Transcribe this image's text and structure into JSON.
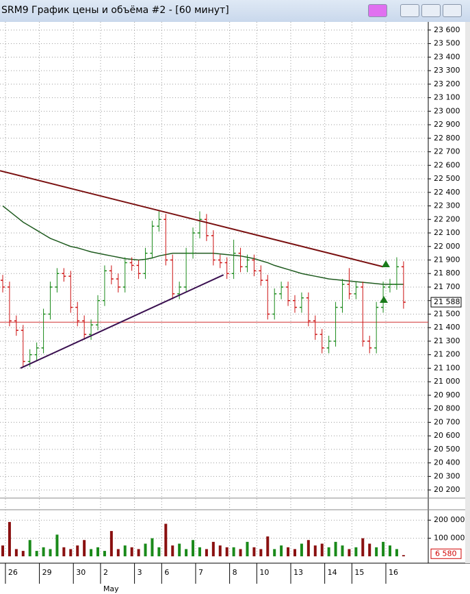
{
  "title": "SRM9 График цены и объёма #2 - [60 минут]",
  "chart_data": {
    "type": "candlestick",
    "open": [
      21750,
      21700,
      21450,
      21380,
      21150,
      21200,
      21250,
      21500,
      21700,
      21800,
      21780,
      21550,
      21450,
      21350,
      21420,
      21600,
      21820,
      21760,
      21700,
      21880,
      21860,
      21800,
      21950,
      22150,
      22200,
      21900,
      21650,
      21700,
      21950,
      22100,
      22200,
      22080,
      21900,
      21880,
      21800,
      21950,
      21850,
      21900,
      21820,
      21750,
      21500,
      21650,
      21700,
      21600,
      21550,
      21620,
      21450,
      21350,
      21250,
      21300,
      21550,
      21720,
      21650,
      21700,
      21300,
      21250,
      21550,
      21700,
      21720,
      21850
    ],
    "high": [
      21790,
      21740,
      21490,
      21420,
      21240,
      21290,
      21540,
      21740,
      21840,
      21840,
      21820,
      21590,
      21490,
      21460,
      21640,
      21860,
      21860,
      21800,
      21920,
      21920,
      21900,
      21990,
      22190,
      22260,
      22240,
      21940,
      21740,
      21990,
      22140,
      22260,
      22240,
      22120,
      21940,
      21920,
      22050,
      21990,
      21940,
      21940,
      21860,
      21790,
      21690,
      21740,
      21740,
      21640,
      21660,
      21660,
      21490,
      21390,
      21340,
      21590,
      21760,
      21840,
      21740,
      21740,
      21340,
      21590,
      21740,
      21760,
      21920,
      21890
    ],
    "low": [
      21660,
      21410,
      21340,
      21110,
      21110,
      21160,
      21210,
      21460,
      21660,
      21740,
      21510,
      21410,
      21310,
      21310,
      21380,
      21560,
      21720,
      21660,
      21660,
      21820,
      21760,
      21760,
      21910,
      22110,
      21860,
      21610,
      21610,
      21660,
      21910,
      22060,
      22040,
      21860,
      21840,
      21760,
      21760,
      21810,
      21810,
      21780,
      21710,
      21460,
      21460,
      21610,
      21560,
      21510,
      21510,
      21410,
      21310,
      21210,
      21210,
      21260,
      21510,
      21610,
      21610,
      21260,
      21210,
      21210,
      21510,
      21660,
      21680,
      21540
    ],
    "close": [
      21700,
      21450,
      21380,
      21150,
      21200,
      21250,
      21500,
      21700,
      21800,
      21780,
      21550,
      21450,
      21350,
      21420,
      21600,
      21820,
      21760,
      21700,
      21880,
      21860,
      21800,
      21950,
      22150,
      22200,
      21900,
      21650,
      21700,
      21950,
      22100,
      22200,
      22080,
      21900,
      21880,
      21800,
      21950,
      21850,
      21900,
      21820,
      21750,
      21500,
      21650,
      21700,
      21600,
      21550,
      21620,
      21450,
      21350,
      21250,
      21300,
      21550,
      21720,
      21650,
      21700,
      21300,
      21250,
      21550,
      21700,
      21720,
      21850,
      21588
    ],
    "moving_average": [
      22300,
      22260,
      22220,
      22180,
      22150,
      22120,
      22090,
      22060,
      22040,
      22020,
      22000,
      21990,
      21975,
      21960,
      21950,
      21940,
      21930,
      21920,
      21910,
      21905,
      21900,
      21905,
      21915,
      21930,
      21940,
      21950,
      21950,
      21950,
      21950,
      21950,
      21950,
      21950,
      21945,
      21940,
      21935,
      21930,
      21920,
      21910,
      21895,
      21880,
      21860,
      21845,
      21830,
      21815,
      21800,
      21790,
      21780,
      21770,
      21760,
      21755,
      21750,
      21745,
      21740,
      21735,
      21730,
      21725,
      21720,
      21720,
      21720,
      21720
    ],
    "volume": [
      60000,
      190000,
      40000,
      30000,
      90000,
      30000,
      50000,
      40000,
      120000,
      50000,
      40000,
      60000,
      90000,
      40000,
      50000,
      30000,
      140000,
      40000,
      60000,
      50000,
      40000,
      70000,
      100000,
      50000,
      180000,
      60000,
      70000,
      40000,
      90000,
      50000,
      40000,
      80000,
      60000,
      50000,
      50000,
      40000,
      80000,
      50000,
      40000,
      110000,
      40000,
      60000,
      50000,
      40000,
      70000,
      90000,
      60000,
      70000,
      50000,
      80000,
      60000,
      40000,
      50000,
      100000,
      70000,
      50000,
      80000,
      60000,
      40000,
      6580
    ],
    "up_color": "#1a8a1a",
    "down_color": "#cc1010",
    "ma_color": "#1e5a1e",
    "trendlines": [
      {
        "x": [
          -0.4,
          56
        ],
        "y": [
          22560,
          21850
        ],
        "color": "#7a1010"
      },
      {
        "x": [
          2.6,
          32.5
        ],
        "y": [
          21100,
          21790
        ],
        "color": "#3a1050"
      }
    ],
    "hline": {
      "value": 21440,
      "color": "#d03030"
    },
    "last_price": {
      "value": 21588,
      "label": "21 588"
    },
    "last_volume": {
      "value": 6580,
      "label": "6 580"
    },
    "ylim": [
      20150,
      23655
    ],
    "yticks": [
      {
        "value": 20200,
        "label": "20 200"
      },
      {
        "value": 20300,
        "label": "20 300"
      },
      {
        "value": 20400,
        "label": "20 400"
      },
      {
        "value": 20500,
        "label": "20 500"
      },
      {
        "value": 20600,
        "label": "20 600"
      },
      {
        "value": 20700,
        "label": "20 700"
      },
      {
        "value": 20800,
        "label": "20 800"
      },
      {
        "value": 20900,
        "label": "20 900"
      },
      {
        "value": 21000,
        "label": "21 000"
      },
      {
        "value": 21100,
        "label": "21 100"
      },
      {
        "value": 21200,
        "label": "21 200"
      },
      {
        "value": 21300,
        "label": "21 300"
      },
      {
        "value": 21400,
        "label": "21 400"
      },
      {
        "value": 21500,
        "label": "21 500"
      },
      {
        "value": 21600,
        "label": "21 600"
      },
      {
        "value": 21700,
        "label": "21 700"
      },
      {
        "value": 21800,
        "label": "21 800"
      },
      {
        "value": 21900,
        "label": "21 900"
      },
      {
        "value": 22000,
        "label": "22 000"
      },
      {
        "value": 22100,
        "label": "22 100"
      },
      {
        "value": 22200,
        "label": "22 200"
      },
      {
        "value": 22300,
        "label": "22 300"
      },
      {
        "value": 22400,
        "label": "22 400"
      },
      {
        "value": 22500,
        "label": "22 500"
      },
      {
        "value": 22600,
        "label": "22 600"
      },
      {
        "value": 22700,
        "label": "22 700"
      },
      {
        "value": 22800,
        "label": "22 800"
      },
      {
        "value": 22900,
        "label": "22 900"
      },
      {
        "value": 23000,
        "label": "23 000"
      },
      {
        "value": 23100,
        "label": "23 100"
      },
      {
        "value": 23200,
        "label": "23 200"
      },
      {
        "value": 23300,
        "label": "23 300"
      },
      {
        "value": 23400,
        "label": "23 400"
      },
      {
        "value": 23500,
        "label": "23 500"
      },
      {
        "value": 23600,
        "label": "23 600"
      }
    ],
    "y2lim": [
      0,
      235000
    ],
    "y2ticks": [
      {
        "value": 100000,
        "label": "100 000"
      },
      {
        "value": 200000,
        "label": "200 000"
      }
    ],
    "date_labels": [
      {
        "x": 1,
        "label": "26"
      },
      {
        "x": 6,
        "label": "29"
      },
      {
        "x": 11,
        "label": "30"
      },
      {
        "x": 15,
        "label": "2"
      },
      {
        "x": 20,
        "label": "3"
      },
      {
        "x": 24,
        "label": "6"
      },
      {
        "x": 29,
        "label": "7"
      },
      {
        "x": 34,
        "label": "8"
      },
      {
        "x": 38,
        "label": "10"
      },
      {
        "x": 43,
        "label": "13"
      },
      {
        "x": 48,
        "label": "14"
      },
      {
        "x": 52,
        "label": "15"
      },
      {
        "x": 57,
        "label": "16"
      }
    ],
    "month_label": {
      "x": 15,
      "label": "May"
    },
    "grid": true
  }
}
